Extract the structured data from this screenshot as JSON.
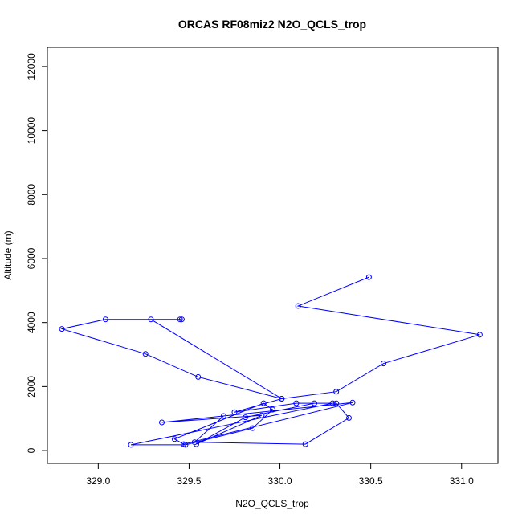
{
  "chart_data": {
    "type": "line",
    "title": "ORCAS RF08miz2 N2O_QCLS_trop",
    "xlabel": "N2O_QCLS_trop",
    "ylabel": "Altitude (m)",
    "xlim": [
      328.72,
      331.2
    ],
    "ylim": [
      -400,
      12600
    ],
    "xticks": [
      329.0,
      329.5,
      330.0,
      330.5,
      331.0
    ],
    "xtick_labels": [
      "329.0",
      "329.5",
      "330.0",
      "330.5",
      "331.0"
    ],
    "yticks": [
      0,
      2000,
      4000,
      6000,
      8000,
      10000,
      12000
    ],
    "ytick_labels": [
      "0",
      "2000",
      "4000",
      "6000",
      "8000",
      "10000",
      "12000"
    ],
    "grid": false,
    "series_color": "#0000ff",
    "markers": "open-circle",
    "series": [
      {
        "x": [
          330.49,
          330.1,
          331.1,
          330.57,
          330.31,
          330.01,
          329.55,
          329.26,
          328.8,
          329.04,
          329.46,
          329.45,
          329.29,
          330.01,
          329.75,
          330.09,
          330.29,
          329.18,
          329.48,
          329.85,
          329.96,
          329.91,
          329.42,
          329.47,
          330.4,
          329.35,
          329.9,
          329.54,
          329.81,
          330.19,
          330.31,
          330.38,
          330.14,
          329.53,
          329.69
        ],
        "y": [
          5420,
          4520,
          3620,
          2720,
          1840,
          1620,
          2300,
          3020,
          3800,
          4100,
          4100,
          4100,
          4100,
          1620,
          1200,
          1480,
          1480,
          180,
          180,
          700,
          1280,
          1480,
          360,
          200,
          1500,
          880,
          1100,
          200,
          1040,
          1480,
          1480,
          1020,
          200,
          260,
          1080
        ]
      }
    ]
  }
}
